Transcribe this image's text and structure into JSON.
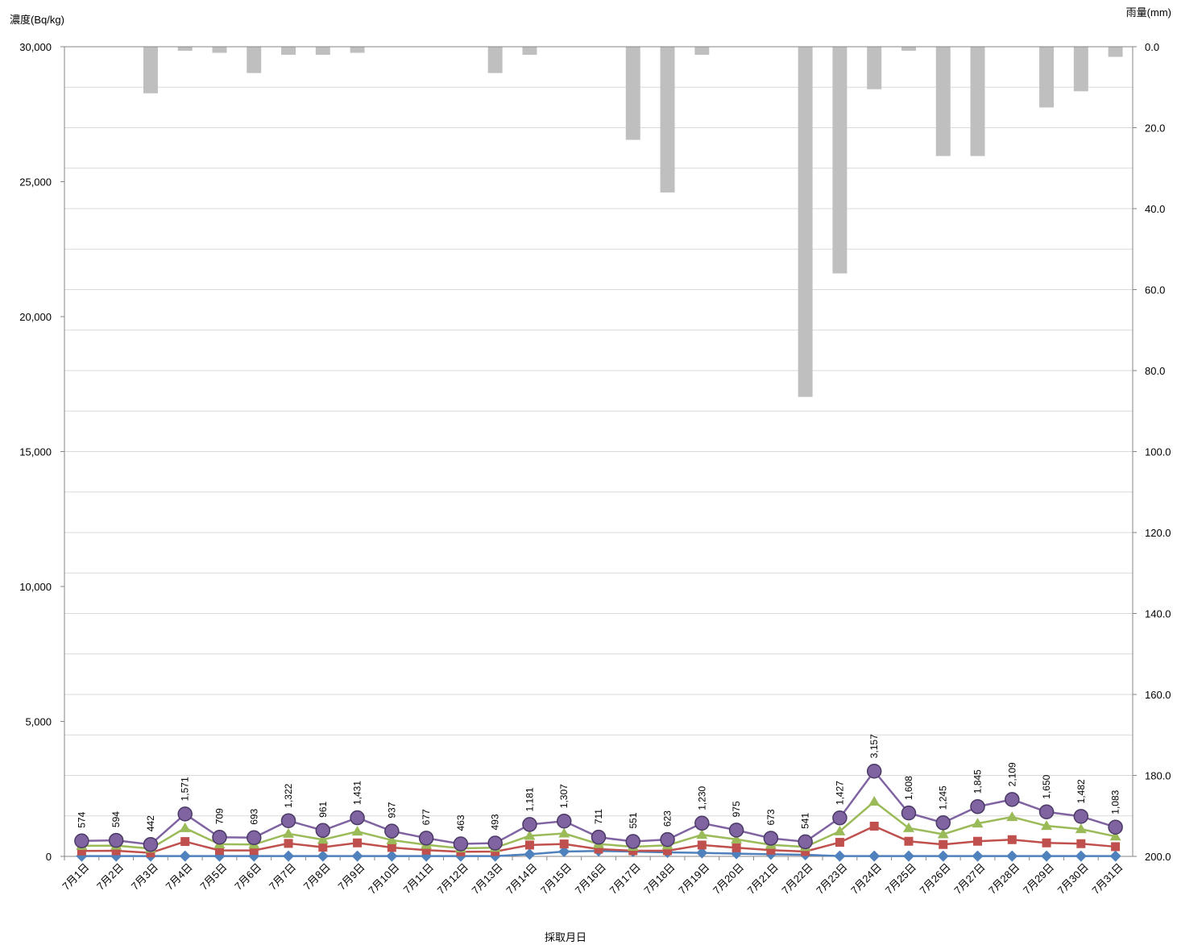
{
  "chart_data": {
    "type": "bar+line",
    "title": "",
    "xlabel": "採取月日",
    "ylabel_left": "濃度(Bq/kg)",
    "ylabel_right": "雨量(mm)",
    "ylim_left": [
      0,
      30000
    ],
    "ylim_right": [
      0,
      200
    ],
    "right_axis_inverted": true,
    "left_ticks": [
      "0",
      "5,000",
      "10,000",
      "15,000",
      "20,000",
      "25,000",
      "30,000"
    ],
    "right_ticks": [
      "0.0",
      "20.0",
      "40.0",
      "60.0",
      "80.0",
      "100.0",
      "120.0",
      "140.0",
      "160.0",
      "180.0",
      "200.0"
    ],
    "grid": true,
    "legend": "none",
    "categories": [
      "7月1日",
      "7月2日",
      "7月3日",
      "7月4日",
      "7月5日",
      "7月6日",
      "7月7日",
      "7月8日",
      "7月9日",
      "7月10日",
      "7月11日",
      "7月12日",
      "7月13日",
      "7月14日",
      "7月15日",
      "7月16日",
      "7月17日",
      "7月18日",
      "7月19日",
      "7月20日",
      "7月21日",
      "7月22日",
      "7月23日",
      "7月24日",
      "7月25日",
      "7月26日",
      "7月27日",
      "7月28日",
      "7月29日",
      "7月30日",
      "7月31日"
    ],
    "rainfall": [
      0,
      0,
      11.5,
      1,
      1.5,
      6.5,
      2,
      2,
      1.5,
      0,
      0,
      0,
      6.5,
      2,
      0,
      0,
      23,
      36,
      2,
      0,
      0,
      86.5,
      56,
      10.5,
      1,
      27,
      27,
      0,
      15,
      11,
      2.5
    ],
    "series": [
      {
        "color": "#4f81bd",
        "marker": "diamond",
        "values": [
          10,
          10,
          10,
          10,
          10,
          10,
          10,
          10,
          10,
          10,
          10,
          10,
          10,
          80,
          180,
          200,
          180,
          150,
          130,
          100,
          80,
          60,
          10,
          10,
          10,
          10,
          10,
          10,
          10,
          10,
          10
        ]
      },
      {
        "color": "#c0504d",
        "marker": "square",
        "values": [
          200,
          210,
          130,
          550,
          220,
          220,
          480,
          340,
          500,
          330,
          230,
          170,
          180,
          420,
          460,
          270,
          210,
          210,
          420,
          320,
          230,
          180,
          520,
          1120,
          560,
          440,
          560,
          620,
          500,
          470,
          360
        ]
      },
      {
        "color": "#9bbb59",
        "marker": "triangle",
        "values": [
          390,
          400,
          290,
          1050,
          450,
          440,
          840,
          620,
          920,
          600,
          430,
          300,
          320,
          760,
          850,
          460,
          360,
          410,
          800,
          630,
          430,
          350,
          930,
          2030,
          1050,
          820,
          1220,
          1460,
          1130,
          1010,
          740
        ]
      },
      {
        "color": "#8064a2",
        "marker": "circle",
        "values": [
          574,
          594,
          442,
          1571,
          709,
          693,
          1322,
          961,
          1431,
          937,
          677,
          463,
          493,
          1181,
          1307,
          711,
          551,
          623,
          1230,
          975,
          673,
          541,
          1427,
          3157,
          1608,
          1245,
          1845,
          2109,
          1650,
          1482,
          1083
        ]
      }
    ],
    "data_labels": [
      "574",
      "594",
      "442",
      "1,571",
      "709",
      "693",
      "1,322",
      "961",
      "1,431",
      "937",
      "677",
      "463",
      "493",
      "1,181",
      "1,307",
      "711",
      "551",
      "623",
      "1,230",
      "975",
      "673",
      "541",
      "1,427",
      "3,157",
      "1,608",
      "1,245",
      "1,845",
      "2,109",
      "1,650",
      "1,482",
      "1,083"
    ],
    "colors": {
      "bar": "#bfbfbf",
      "grid": "#d9d9d9",
      "axis": "#868686"
    }
  }
}
